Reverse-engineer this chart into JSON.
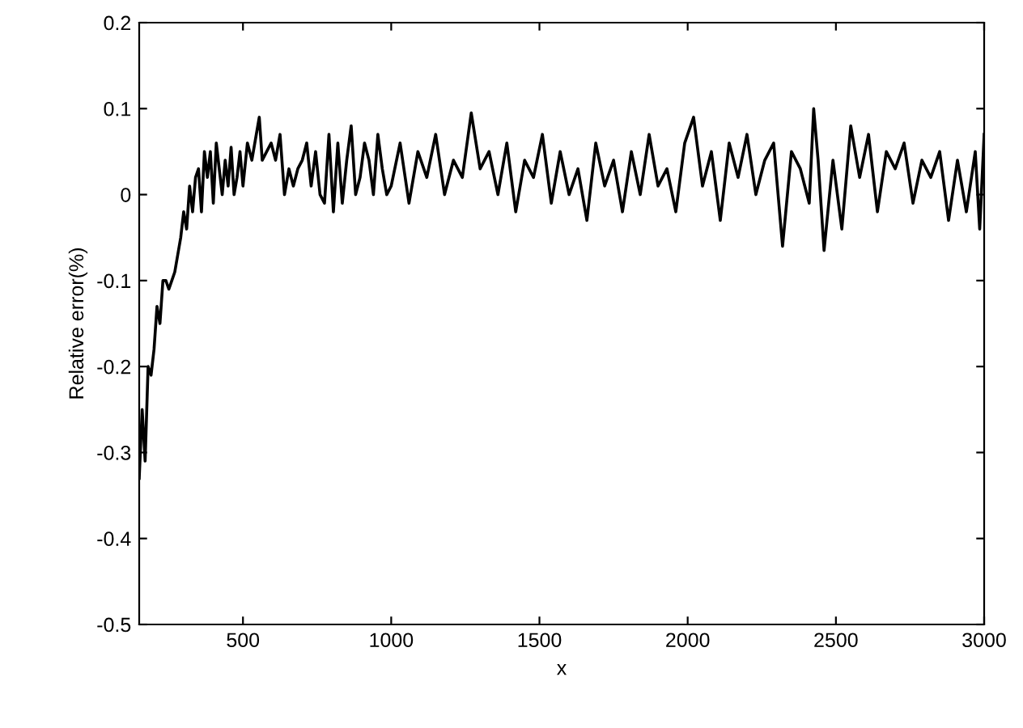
{
  "chart_data": {
    "type": "line",
    "xlabel": "x",
    "ylabel": "Relative error(%)",
    "xlim": [
      150,
      3000
    ],
    "ylim": [
      -0.5,
      0.2
    ],
    "xticks": [
      500,
      1000,
      1500,
      2000,
      2500,
      3000
    ],
    "yticks": [
      -0.5,
      -0.4,
      -0.3,
      -0.2,
      -0.1,
      0,
      0.1,
      0.2
    ],
    "grid": false,
    "legend": false,
    "marker": "none",
    "line_style": "solid",
    "series": [
      {
        "color": "#000000",
        "x": [
          150,
          160,
          170,
          180,
          190,
          200,
          210,
          220,
          230,
          240,
          250,
          260,
          270,
          280,
          290,
          300,
          310,
          320,
          330,
          340,
          350,
          360,
          370,
          380,
          390,
          400,
          410,
          420,
          430,
          440,
          450,
          460,
          470,
          480,
          490,
          500,
          515,
          530,
          545,
          555,
          565,
          580,
          595,
          610,
          625,
          640,
          655,
          670,
          685,
          700,
          715,
          730,
          745,
          760,
          775,
          790,
          805,
          820,
          835,
          850,
          865,
          880,
          895,
          910,
          925,
          940,
          955,
          970,
          985,
          1000,
          1030,
          1060,
          1090,
          1120,
          1150,
          1180,
          1210,
          1240,
          1270,
          1300,
          1330,
          1360,
          1390,
          1420,
          1450,
          1480,
          1510,
          1540,
          1570,
          1600,
          1630,
          1660,
          1690,
          1720,
          1750,
          1780,
          1810,
          1840,
          1870,
          1900,
          1930,
          1960,
          1990,
          2020,
          2050,
          2080,
          2110,
          2140,
          2170,
          2200,
          2230,
          2260,
          2290,
          2320,
          2350,
          2380,
          2410,
          2425,
          2440,
          2460,
          2490,
          2520,
          2550,
          2580,
          2610,
          2640,
          2670,
          2700,
          2730,
          2760,
          2790,
          2820,
          2850,
          2880,
          2910,
          2940,
          2970,
          2985,
          3000
        ],
        "values": [
          -0.33,
          -0.25,
          -0.31,
          -0.2,
          -0.21,
          -0.18,
          -0.13,
          -0.15,
          -0.1,
          -0.1,
          -0.11,
          -0.1,
          -0.09,
          -0.07,
          -0.05,
          -0.02,
          -0.04,
          0.01,
          -0.02,
          0.02,
          0.03,
          -0.02,
          0.05,
          0.02,
          0.05,
          -0.01,
          0.06,
          0.03,
          0.0,
          0.04,
          0.01,
          0.055,
          0.0,
          0.02,
          0.05,
          0.01,
          0.06,
          0.04,
          0.07,
          0.09,
          0.04,
          0.05,
          0.06,
          0.04,
          0.07,
          0.0,
          0.03,
          0.01,
          0.03,
          0.04,
          0.06,
          0.01,
          0.05,
          0.0,
          -0.01,
          0.07,
          -0.02,
          0.06,
          -0.01,
          0.04,
          0.08,
          0.0,
          0.02,
          0.06,
          0.04,
          0.0,
          0.07,
          0.03,
          0.0,
          0.01,
          0.06,
          -0.01,
          0.05,
          0.02,
          0.07,
          0.0,
          0.04,
          0.02,
          0.095,
          0.03,
          0.05,
          0.0,
          0.06,
          -0.02,
          0.04,
          0.02,
          0.07,
          -0.01,
          0.05,
          0.0,
          0.03,
          -0.03,
          0.06,
          0.01,
          0.04,
          -0.02,
          0.05,
          0.0,
          0.07,
          0.01,
          0.03,
          -0.02,
          0.06,
          0.09,
          0.01,
          0.05,
          -0.03,
          0.06,
          0.02,
          0.07,
          0.0,
          0.04,
          0.06,
          -0.06,
          0.05,
          0.03,
          -0.01,
          0.1,
          0.04,
          -0.065,
          0.04,
          -0.04,
          0.08,
          0.02,
          0.07,
          -0.02,
          0.05,
          0.03,
          0.06,
          -0.01,
          0.04,
          0.02,
          0.05,
          -0.03,
          0.04,
          -0.02,
          0.05,
          -0.04,
          0.07
        ]
      }
    ]
  }
}
